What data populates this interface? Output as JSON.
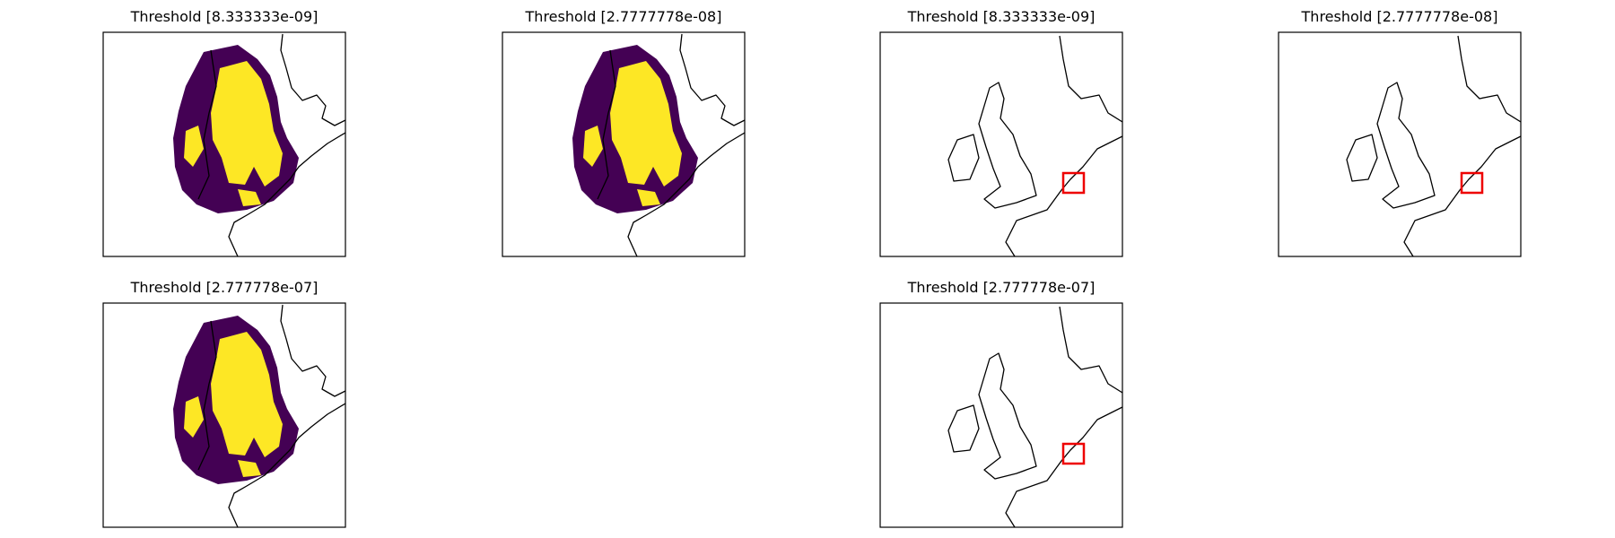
{
  "panels": [
    {
      "title": "Threshold [8.333333e-09]"
    },
    {
      "title": "Threshold [2.7777778e-08]"
    },
    {
      "title": "Threshold [8.333333e-09]"
    },
    {
      "title": "Threshold [2.7777778e-08]"
    },
    {
      "title": "Threshold [2.777778e-07]"
    },
    {
      "title": "Threshold [2.777778e-07]"
    }
  ]
}
